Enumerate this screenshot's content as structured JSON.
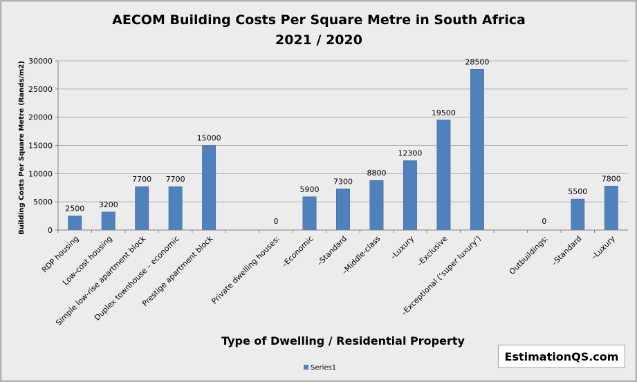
{
  "chart_data": {
    "type": "bar",
    "title_lines": [
      "AECOM Building Costs Per Square Metre in South Africa",
      "2021 / 2020"
    ],
    "xlabel": "Type of Dwelling / Residential Property",
    "ylabel": "Building Costs Per Square Metre (Rands/m2)",
    "ylim": [
      0,
      30000
    ],
    "yticks": [
      "0",
      "5000",
      "10000",
      "15000",
      "20000",
      "25000",
      "30000"
    ],
    "grid": true,
    "legend_position": "bottom",
    "categories": [
      "RDP housing",
      "Low-cost housing",
      "Simple low-rise apartment block",
      "Duplex townhouse – economic",
      "Prestige apartment block",
      "",
      "Private dwelling houses:",
      "–Economic",
      "–Standard",
      "–Middle-class",
      "–Luxury",
      "–Exclusive",
      "–Exceptional (‘super luxury’)",
      "",
      "Outbuildings:",
      "–Standard",
      "–Luxury"
    ],
    "series": [
      {
        "name": "Series1",
        "values": [
          2500,
          3200,
          7700,
          7700,
          15000,
          null,
          0,
          5900,
          7300,
          8800,
          12300,
          19500,
          28500,
          null,
          0,
          5500,
          7800
        ]
      }
    ],
    "data_labels": [
      "2500",
      "3200",
      "7700",
      "7700",
      "15000",
      "",
      "0",
      "5900",
      "7300",
      "8800",
      "12300",
      "19500",
      "28500",
      "",
      "0",
      "5500",
      "7800"
    ],
    "colors": {
      "bar": "#4f81bd",
      "bar_edge": "#3a6596",
      "grid": "#b0b0b0",
      "axis": "#808080",
      "background": "#ececec"
    }
  },
  "watermark": "EstimationQS.com"
}
